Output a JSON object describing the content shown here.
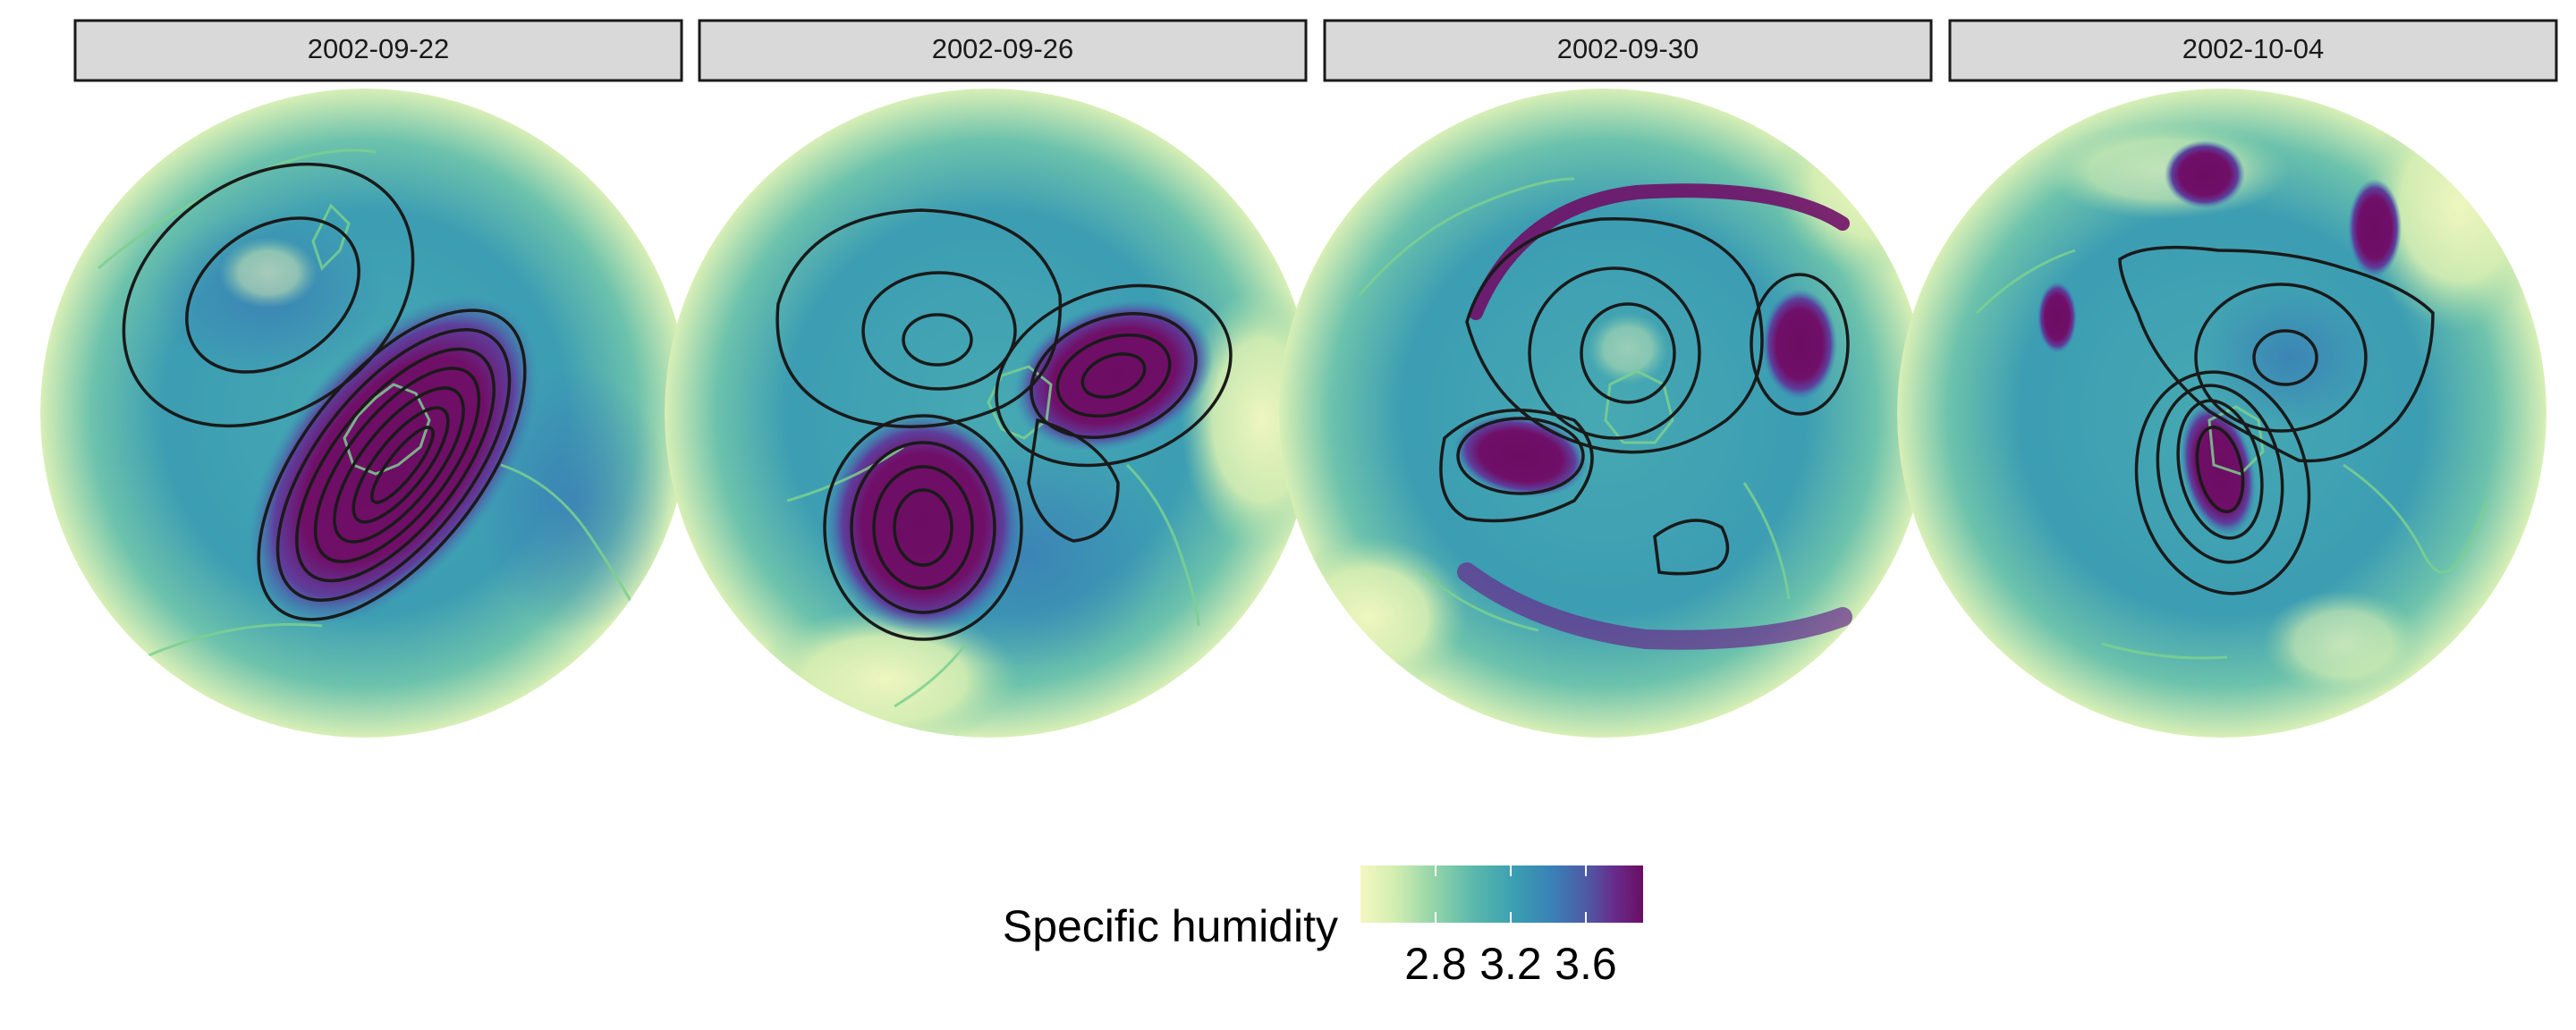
{
  "figure": {
    "type": "faceted polar stereographic maps with contour overlay",
    "facets": [
      {
        "date": "2002-09-22"
      },
      {
        "date": "2002-09-26"
      },
      {
        "date": "2002-09-30"
      },
      {
        "date": "2002-10-04"
      }
    ]
  },
  "legend": {
    "title": "Specific humidity",
    "ticks": [
      "2.8",
      "3.2",
      "3.6"
    ],
    "tick_values": [
      2.8,
      3.2,
      3.6
    ],
    "range": [
      2.4,
      3.9
    ],
    "palette": [
      "#f5f7c0",
      "#d3eeb1",
      "#98d6a8",
      "#5ab8ac",
      "#3a9eb2",
      "#3a80b6",
      "#4e5aa4",
      "#682b8c",
      "#6b0d62"
    ]
  },
  "colors": {
    "strip_fill": "#d9d9d9",
    "strip_border": "#1a1a1a",
    "contour": "#1a1a1a",
    "coastline": "#7bd08f"
  },
  "chart_data": {
    "type": "heatmap",
    "variable": "Specific humidity",
    "facet_labels": [
      "2002-09-22",
      "2002-09-26",
      "2002-09-30",
      "2002-10-04"
    ],
    "colorbar_ticks": [
      2.8,
      3.2,
      3.6
    ],
    "colorbar_range": [
      2.4,
      3.9
    ],
    "contours": "black contour lines overlaid",
    "coastlines": "green outlines"
  }
}
